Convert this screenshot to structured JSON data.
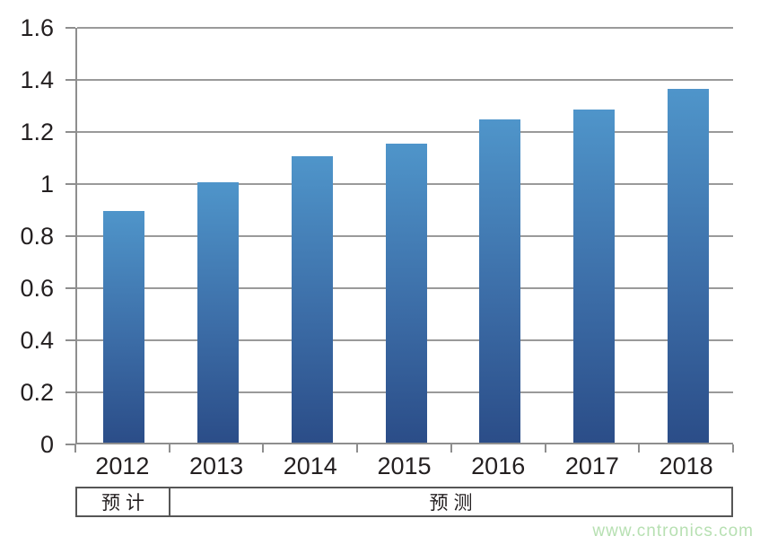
{
  "chart_data": {
    "type": "bar",
    "categories": [
      "2012",
      "2013",
      "2014",
      "2015",
      "2016",
      "2017",
      "2018"
    ],
    "values": [
      0.89,
      1.0,
      1.1,
      1.15,
      1.24,
      1.28,
      1.36
    ],
    "title": "",
    "xlabel": "",
    "ylabel": "",
    "ylim": [
      0,
      1.6
    ],
    "ytick_step": 0.2,
    "ytick_labels": [
      "0",
      "0.2",
      "0.4",
      "0.6",
      "0.8",
      "1",
      "1.2",
      "1.4",
      "1.6"
    ],
    "grid": true,
    "legend": "none",
    "bar_color_top": "#4f95ca",
    "bar_color_bottom": "#2b4d88",
    "gridline_color": "#9a9a9a",
    "axis_color": "#8e8e8e"
  },
  "annotation_row": {
    "left_label": "预计",
    "left_span_categories": 1,
    "right_label": "预测",
    "right_span_categories": 6
  },
  "watermark": {
    "text": "www.cntronics.com",
    "color": "#b7e0b2"
  }
}
